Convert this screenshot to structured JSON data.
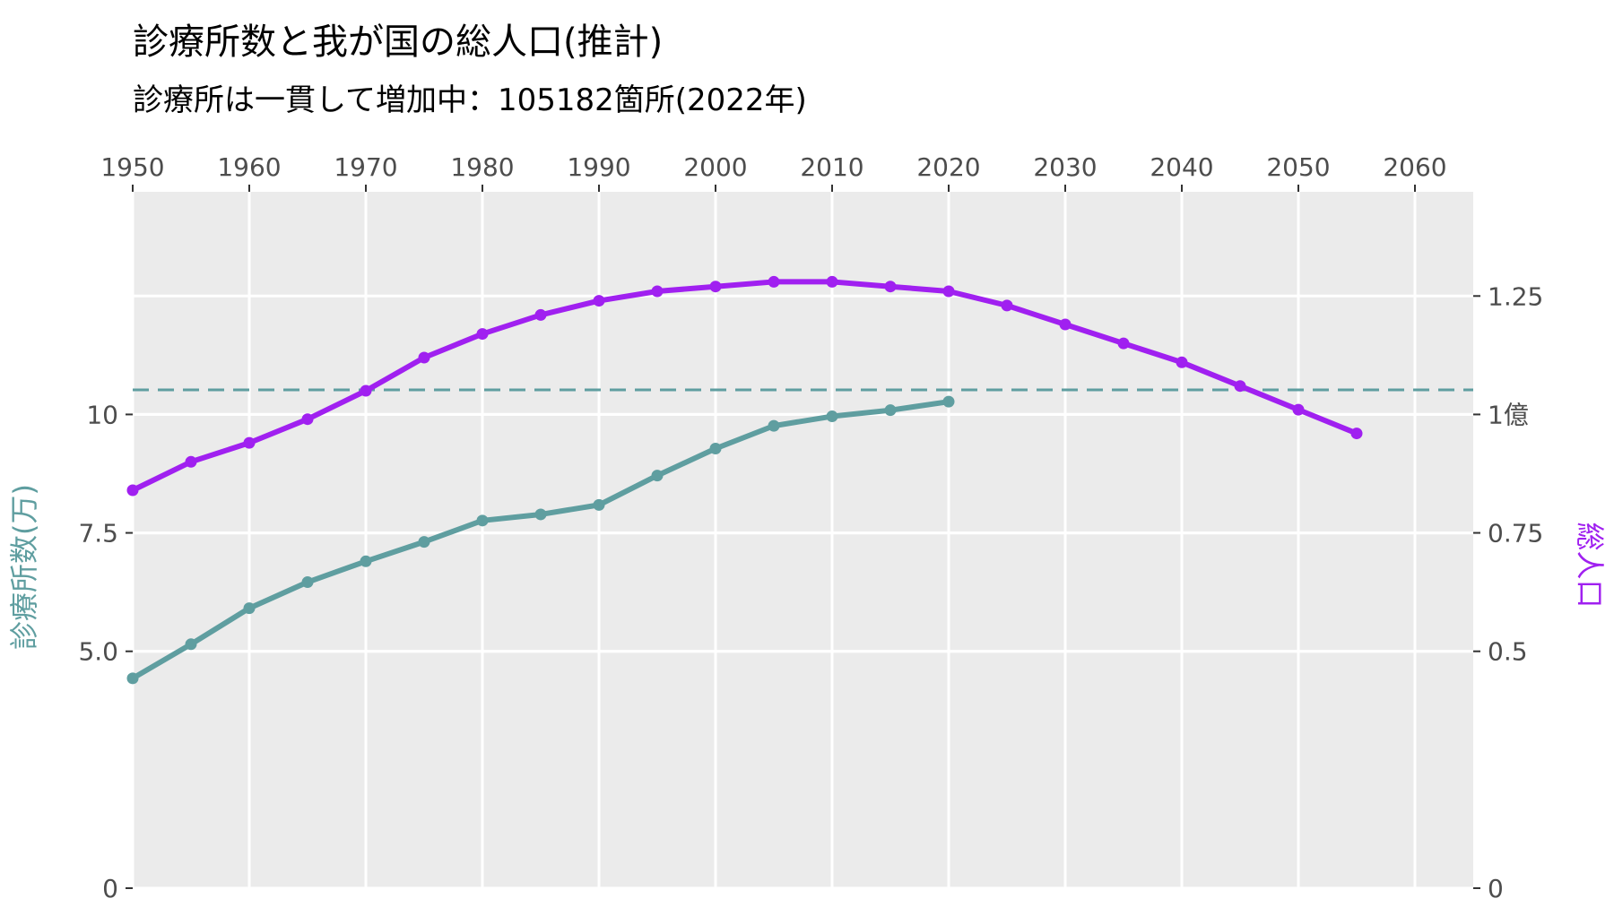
{
  "chart_data": {
    "type": "line",
    "title": "診療所数と我が国の総人口(推計)",
    "subtitle": "診療所は一貫して増加中：105182箇所(2022年)",
    "x_axis": {
      "position": "top",
      "range": [
        1950,
        2065
      ],
      "ticks": [
        1950,
        1960,
        1970,
        1980,
        1990,
        2000,
        2010,
        2020,
        2030,
        2040,
        2050,
        2060
      ],
      "tick_labels": [
        "1950",
        "1960",
        "1970",
        "1980",
        "1990",
        "2000",
        "2010",
        "2020",
        "2030",
        "2040",
        "2050",
        "2060"
      ]
    },
    "y_axis_left": {
      "label": "診療所数(万)",
      "range": [
        0,
        14.7
      ],
      "ticks": [
        0,
        5,
        7.5,
        10
      ],
      "tick_labels": [
        "0",
        "5.0",
        "7.5",
        "10"
      ],
      "color": "#5f9ea0"
    },
    "y_axis_right": {
      "label": "総人口",
      "range": [
        0,
        1.47
      ],
      "ticks": [
        0,
        0.5,
        0.75,
        1,
        1.25
      ],
      "tick_labels": [
        "0",
        "0.5",
        "0.75",
        "1億",
        "1.25"
      ],
      "color": "#a020f0"
    },
    "reference_line": {
      "axis": "left",
      "value": 10.52,
      "style": "dashed",
      "color": "#5f9ea0"
    },
    "grid": true,
    "series": [
      {
        "axis": "left",
        "color": "#5f9ea0",
        "x": [
          1950,
          1955,
          1960,
          1965,
          1970,
          1975,
          1980,
          1985,
          1990,
          1995,
          2000,
          2005,
          2010,
          2015,
          2020
        ],
        "values": [
          4.43,
          5.15,
          5.91,
          6.46,
          6.9,
          7.31,
          7.76,
          7.89,
          8.09,
          8.71,
          9.28,
          9.76,
          9.96,
          10.09,
          10.27
        ]
      },
      {
        "axis": "right",
        "color": "#a020f0",
        "x": [
          1950,
          1955,
          1960,
          1965,
          1970,
          1975,
          1980,
          1985,
          1990,
          1995,
          2000,
          2005,
          2010,
          2015,
          2020,
          2025,
          2030,
          2035,
          2040,
          2045,
          2050,
          2055
        ],
        "values": [
          0.84,
          0.9,
          0.94,
          0.99,
          1.05,
          1.12,
          1.17,
          1.21,
          1.24,
          1.26,
          1.27,
          1.28,
          1.28,
          1.27,
          1.26,
          1.23,
          1.19,
          1.15,
          1.11,
          1.06,
          1.01,
          0.96
        ]
      }
    ]
  }
}
